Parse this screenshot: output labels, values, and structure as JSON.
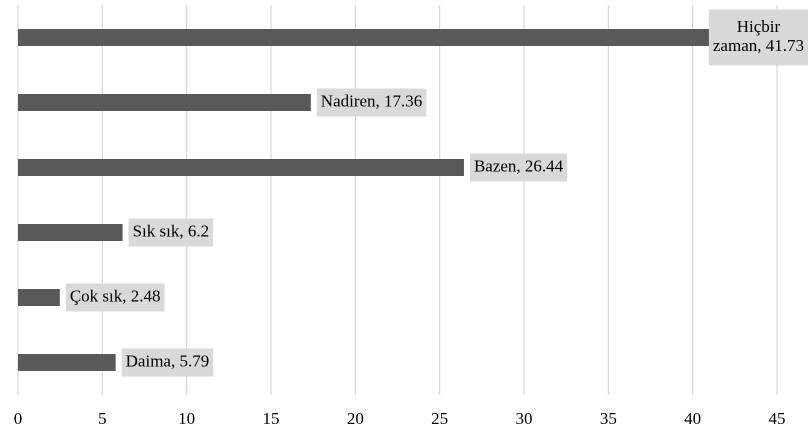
{
  "chart_data": {
    "type": "bar",
    "orientation": "horizontal",
    "values": [
      41.73,
      17.36,
      26.44,
      6.2,
      2.48,
      5.79
    ],
    "value_labels": [
      "Hiçbir zaman, 41.73",
      "Nadiren, 17.36",
      "Bazen, 26.44",
      "Sık sık, 6.2",
      "Çok sık, 2.48",
      "Daima, 5.79"
    ],
    "color": "#595959",
    "label_box_color": "#d9d9d9",
    "xlim": [
      0,
      45
    ],
    "xticks": [
      0,
      5,
      10,
      15,
      20,
      25,
      30,
      35,
      40,
      45
    ],
    "grid": true
  }
}
